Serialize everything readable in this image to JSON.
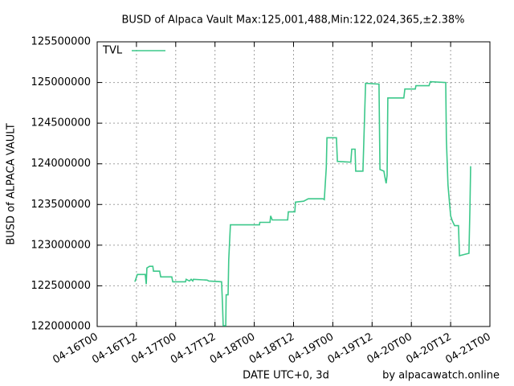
{
  "chart_data": {
    "type": "line",
    "title": "BUSD of Alpaca Vault Max:125,001,488,Min:122,024,365,±2.38%",
    "y_label": "BUSD of ALPACA VAULT",
    "x_label": "DATE UTC+0, 3d",
    "footer": "by alpacawatch.online",
    "xlim": [
      0,
      120
    ],
    "xticks": [
      {
        "value": 0,
        "label": "04-16T00"
      },
      {
        "value": 12,
        "label": "04-16T12"
      },
      {
        "value": 24,
        "label": "04-17T00"
      },
      {
        "value": 36,
        "label": "04-17T12"
      },
      {
        "value": 48,
        "label": "04-18T00"
      },
      {
        "value": 60,
        "label": "04-18T12"
      },
      {
        "value": 72,
        "label": "04-19T00"
      },
      {
        "value": 84,
        "label": "04-19T12"
      },
      {
        "value": 96,
        "label": "04-20T00"
      },
      {
        "value": 108,
        "label": "04-20T12"
      },
      {
        "value": 120,
        "label": "04-21T00"
      }
    ],
    "ylim": [
      122000000,
      125500000
    ],
    "yticks": [
      122000000,
      122500000,
      123000000,
      123500000,
      124000000,
      124500000,
      125000000,
      125500000
    ],
    "grid": true,
    "legend": "top-left",
    "x": [
      11.5,
      12.3,
      14.7,
      15.0,
      15.2,
      16.0,
      17.0,
      17.2,
      19.1,
      19.4,
      22.8,
      23.1,
      27.0,
      27.2,
      28.2,
      28.7,
      29.2,
      29.4,
      33.6,
      34.1,
      38.0,
      38.3,
      38.5,
      39.3,
      39.4,
      40.0,
      40.2,
      40.7,
      49.6,
      49.7,
      52.8,
      53.0,
      53.5,
      58.2,
      58.4,
      60.4,
      60.6,
      63.1,
      64.5,
      69.0,
      69.4,
      70.0,
      70.2,
      73.1,
      73.4,
      77.5,
      77.8,
      78.8,
      79.0,
      81.2,
      82.0,
      86.1,
      86.4,
      87.6,
      87.9,
      88.3,
      88.6,
      88.8,
      93.7,
      94.0,
      97.2,
      97.4,
      101.4,
      101.8,
      106.5,
      106.7,
      107.2,
      108.0,
      108.5,
      109.2,
      110.4,
      110.7,
      112.6,
      113.6,
      113.9,
      114.1
    ],
    "series": [
      {
        "name": "TVL",
        "color": "#3cc88a",
        "values": [
          122550000,
          122640000,
          122640000,
          122520000,
          122720000,
          122740000,
          122740000,
          122680000,
          122680000,
          122610000,
          122610000,
          122550000,
          122550000,
          122580000,
          122560000,
          122580000,
          122560000,
          122580000,
          122570000,
          122560000,
          122550000,
          122260000,
          122010000,
          122010000,
          122390000,
          122390000,
          122820000,
          123250000,
          123250000,
          123280000,
          123280000,
          123360000,
          123310000,
          123310000,
          123410000,
          123410000,
          123530000,
          123540000,
          123570000,
          123570000,
          123560000,
          123960000,
          124320000,
          124320000,
          124030000,
          124020000,
          124180000,
          124180000,
          123910000,
          123910000,
          124990000,
          124980000,
          123930000,
          123910000,
          123840000,
          123760000,
          123860000,
          124810000,
          124810000,
          124920000,
          124920000,
          124960000,
          124960000,
          125010000,
          125000000,
          124300000,
          123740000,
          123360000,
          123300000,
          123240000,
          123240000,
          122870000,
          122890000,
          122900000,
          123440000,
          123970000
        ]
      }
    ]
  }
}
